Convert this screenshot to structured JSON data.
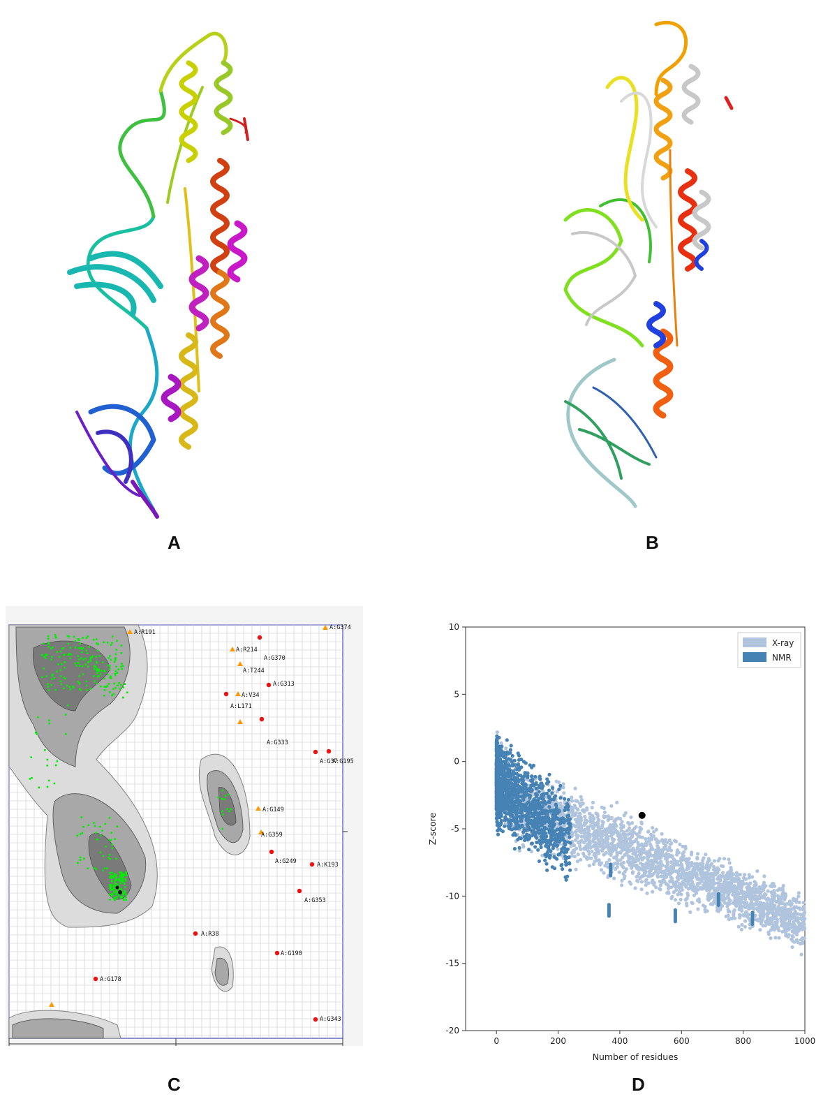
{
  "panels": {
    "a": {
      "label": "A"
    },
    "b": {
      "label": "B"
    },
    "c": {
      "label": "C"
    },
    "d": {
      "label": "D"
    }
  },
  "ramachandran": {
    "outlier_labels": [
      "A:R191",
      "A:G374",
      "A:R214",
      "A:G370",
      "A:T244",
      "A:G313",
      "A:V34",
      "A:L171",
      "A:G333",
      "A:G37",
      "A:G195",
      "A:G149",
      "A:G359",
      "A:G249",
      "A:K193",
      "A:G353",
      "A:R38",
      "A:G190",
      "A:G178",
      "A:G343"
    ]
  },
  "zscore": {
    "legend": [
      {
        "label": "X-ray",
        "color": "#b0c4de"
      },
      {
        "label": "NMR",
        "color": "#4682b4"
      }
    ],
    "xlabel": "Number of residues",
    "ylabel": "Z-score",
    "xticks": [
      "0",
      "200",
      "400",
      "600",
      "800",
      "1000"
    ],
    "yticks": [
      "10",
      "5",
      "0",
      "-5",
      "-10",
      "-15",
      "-20"
    ],
    "query_point": {
      "residues": 472,
      "zscore": -4.0
    }
  },
  "colors": {
    "xray": "#b0c4de",
    "nmr": "#4682b4",
    "allowed": "#00ee00",
    "outlier": "#ee1111",
    "generous": "#ff9900"
  }
}
